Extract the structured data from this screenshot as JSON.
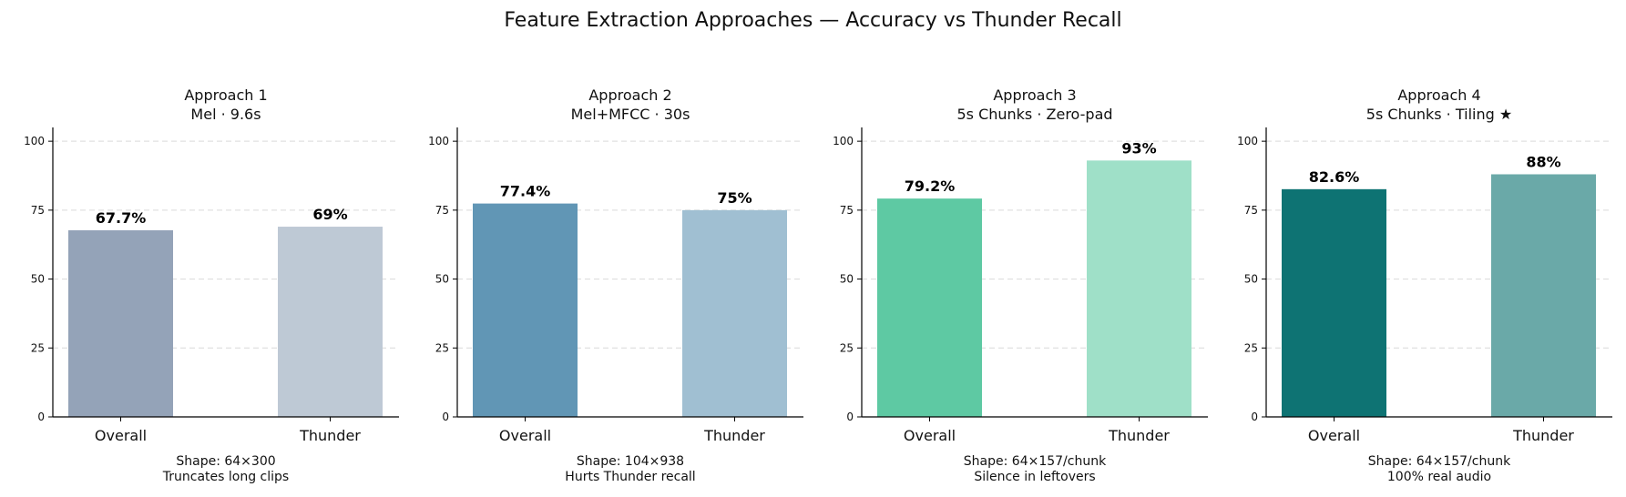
{
  "title": "Feature Extraction Approaches — Accuracy vs Thunder Recall",
  "chart_data": [
    {
      "type": "bar",
      "title": "Approach 1",
      "subtitle": "Mel · 9.6s",
      "categories": [
        "Overall",
        "Thunder"
      ],
      "values": [
        67.7,
        69
      ],
      "value_labels": [
        "67.7%",
        "69%"
      ],
      "colors": [
        "#94a3b8",
        "#bec9d5"
      ],
      "ylim": [
        0,
        105
      ],
      "yticks": [
        0,
        25,
        50,
        75,
        100
      ],
      "grid": true,
      "notes": [
        "Shape: 64×300",
        "Truncates long clips"
      ]
    },
    {
      "type": "bar",
      "title": "Approach 2",
      "subtitle": "Mel+MFCC · 30s",
      "categories": [
        "Overall",
        "Thunder"
      ],
      "values": [
        77.4,
        75
      ],
      "value_labels": [
        "77.4%",
        "75%"
      ],
      "colors": [
        "#6196b5",
        "#a0bfd2"
      ],
      "ylim": [
        0,
        105
      ],
      "yticks": [
        0,
        25,
        50,
        75,
        100
      ],
      "grid": true,
      "notes": [
        "Shape: 104×938",
        "Hurts Thunder recall"
      ]
    },
    {
      "type": "bar",
      "title": "Approach 3",
      "subtitle": "5s Chunks · Zero-pad",
      "categories": [
        "Overall",
        "Thunder"
      ],
      "values": [
        79.2,
        93
      ],
      "value_labels": [
        "79.2%",
        "93%"
      ],
      "colors": [
        "#5ec9a3",
        "#9fe0c8"
      ],
      "ylim": [
        0,
        105
      ],
      "yticks": [
        0,
        25,
        50,
        75,
        100
      ],
      "grid": true,
      "notes": [
        "Shape: 64×157/chunk",
        "Silence in leftovers"
      ]
    },
    {
      "type": "bar",
      "title": "Approach 4",
      "subtitle": "5s Chunks · Tiling ★",
      "categories": [
        "Overall",
        "Thunder"
      ],
      "values": [
        82.6,
        88
      ],
      "value_labels": [
        "82.6%",
        "88%"
      ],
      "colors": [
        "#0e7373",
        "#6aa9a8"
      ],
      "ylim": [
        0,
        105
      ],
      "yticks": [
        0,
        25,
        50,
        75,
        100
      ],
      "grid": true,
      "notes": [
        "Shape: 64×157/chunk",
        "100% real audio"
      ]
    }
  ]
}
